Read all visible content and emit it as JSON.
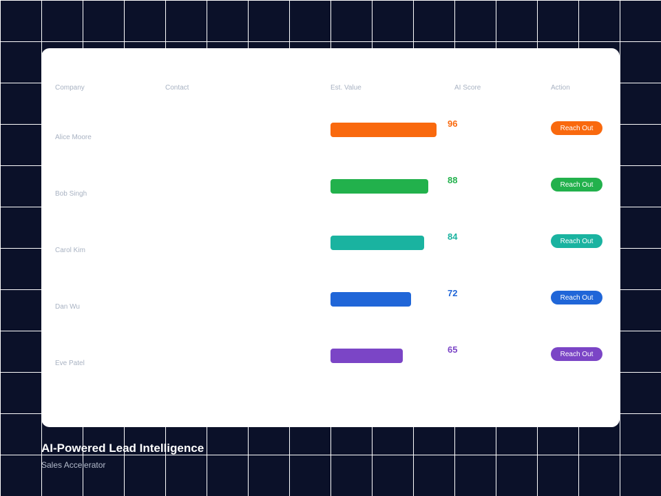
{
  "table": {
    "headers": {
      "company": "Company",
      "contact": "Contact",
      "value": "Est. Value",
      "score": "AI Score",
      "action": "Action"
    },
    "rows": [
      {
        "company": "Alice Moore",
        "contact": "",
        "value_fraction": 1.0,
        "score": "96",
        "action": "Reach Out",
        "color": "#f9690e"
      },
      {
        "company": "Bob Singh",
        "contact": "",
        "value_fraction": 0.92,
        "score": "88",
        "action": "Reach Out",
        "color": "#22b14c"
      },
      {
        "company": "Carol Kim",
        "contact": "",
        "value_fraction": 0.88,
        "score": "84",
        "action": "Reach Out",
        "color": "#1ab3a0"
      },
      {
        "company": "Dan Wu",
        "contact": "",
        "value_fraction": 0.76,
        "score": "72",
        "action": "Reach Out",
        "color": "#2066d8"
      },
      {
        "company": "Eve Patel",
        "contact": "",
        "value_fraction": 0.68,
        "score": "65",
        "action": "Reach Out",
        "color": "#7b45c6"
      }
    ]
  },
  "footer": {
    "title": "AI-Powered Lead Intelligence",
    "subtitle": "Sales Accelerator"
  }
}
